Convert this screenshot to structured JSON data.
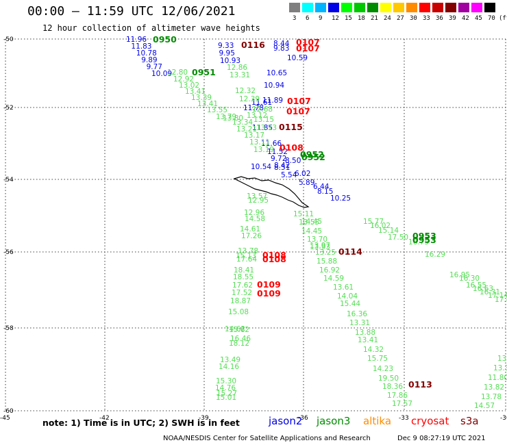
{
  "header": {
    "title": "00:00 – 11:59 UTC 12/06/2021",
    "subtitle": "12 hour collection of altimeter wave heights"
  },
  "legend": {
    "unit": "(ft)",
    "bins": [
      {
        "label": "3",
        "color": "#7f7f7f"
      },
      {
        "label": "6",
        "color": "#00ffff"
      },
      {
        "label": "9",
        "color": "#00b4ff"
      },
      {
        "label": "12",
        "color": "#0000e6"
      },
      {
        "label": "15",
        "color": "#00ff00"
      },
      {
        "label": "18",
        "color": "#00c800"
      },
      {
        "label": "21",
        "color": "#008c00"
      },
      {
        "label": "24",
        "color": "#ffff00"
      },
      {
        "label": "27",
        "color": "#ffc800"
      },
      {
        "label": "30",
        "color": "#ff8c00"
      },
      {
        "label": "33",
        "color": "#ff0000"
      },
      {
        "label": "36",
        "color": "#c80000"
      },
      {
        "label": "39",
        "color": "#820000"
      },
      {
        "label": "42",
        "color": "#a000a0"
      },
      {
        "label": "45",
        "color": "#ff00ff"
      },
      {
        "label": "70",
        "color": "#000000"
      }
    ]
  },
  "axes": {
    "lat_labels": [
      "-50",
      "-52",
      "-54",
      "-56",
      "-58",
      "-60"
    ],
    "lon_labels": [
      "-45",
      "-42",
      "-39",
      "-36",
      "-33",
      "-30"
    ]
  },
  "passes": [
    {
      "time": "0950",
      "color": "#008c00"
    },
    {
      "time": "0951",
      "color": "#008c00"
    },
    {
      "time": "0116",
      "color": "#820000"
    },
    {
      "time": "0107",
      "color": "#ff0000"
    },
    {
      "time": "0107",
      "color": "#ff0000"
    },
    {
      "time": "0107",
      "color": "#ff0000"
    },
    {
      "time": "0107",
      "color": "#ff0000"
    },
    {
      "time": "0115",
      "color": "#820000"
    },
    {
      "time": "0108",
      "color": "#ff0000"
    },
    {
      "time": "0952",
      "color": "#008c00"
    },
    {
      "time": "0953",
      "color": "#008c00"
    },
    {
      "time": "0108",
      "color": "#ff0000"
    },
    {
      "time": "0109",
      "color": "#ff0000"
    },
    {
      "time": "0114",
      "color": "#820000"
    },
    {
      "time": "0113",
      "color": "#820000"
    }
  ],
  "readings": {
    "jason2_a": [
      "11.96",
      "11.83",
      "10.78",
      "9.89",
      "9.77",
      "10.09"
    ],
    "jason2_b": [
      "9.33",
      "9.95",
      "10.93"
    ],
    "jason2_c": [
      "8.44",
      "9.83",
      "10.59",
      "10.65",
      "10.94",
      "11.89",
      "11.61",
      "11.78",
      "11.85",
      "11.66",
      "11.52",
      "9.72",
      "8.50",
      "8.42",
      "10.54",
      "8.51",
      "5.54",
      "6.02",
      "5.89",
      "6.44",
      "8.15",
      "10.25"
    ],
    "jason3_a": [
      "12.80",
      "12.92",
      "13.02",
      "13.41",
      "13.39",
      "13.41",
      "13.55",
      "13.79",
      "13.80",
      "13.34",
      "13.21",
      "13.17",
      "13.11",
      "13.19",
      "14.45",
      "15.77",
      "16.02",
      "15.14",
      "17.50",
      "16.75",
      "16.29",
      "16.95",
      "16.30",
      "16.55",
      "16.63",
      "16.31",
      "17.14",
      "17.44"
    ],
    "jason3_b": [
      "12.86",
      "13.31",
      "12.32",
      "12.39",
      "12.68",
      "13.12",
      "13.15",
      "13.13",
      "13.97"
    ],
    "jason3_c": [
      "13.57",
      "12.95",
      "12.96",
      "14.58",
      "14.61",
      "17.26",
      "13.78",
      "15.13",
      "17.64",
      "18.41",
      "18.55",
      "17.62",
      "17.52",
      "18.87",
      "15.08",
      "14.62",
      "15.62",
      "16.46",
      "18.12",
      "13.49",
      "14.16",
      "15.30",
      "14.76",
      "15.27",
      "15.01"
    ],
    "jason3_d": [
      "15.11",
      "13.55",
      "14.45",
      "13.70",
      "13.93",
      "13.25",
      "15.88",
      "16.92",
      "14.59",
      "13.61",
      "14.04",
      "15.44",
      "16.36",
      "13.31",
      "13.88",
      "13.41",
      "14.32",
      "15.75",
      "14.23",
      "19.50",
      "18.36",
      "17.86",
      "17.57"
    ],
    "jason3_e": [
      "13",
      "13.3",
      "11.80",
      "13.82",
      "13.78",
      "14.57"
    ]
  },
  "note": "note: 1) Time is in UTC; 2) SWH is in feet",
  "satellites": [
    {
      "name": "jason2",
      "color": "#0000e6"
    },
    {
      "name": "jason3",
      "color": "#008c00"
    },
    {
      "name": "altika",
      "color": "#ff8c00"
    },
    {
      "name": "cryosat",
      "color": "#ff0000"
    },
    {
      "name": "s3a",
      "color": "#820000"
    }
  ],
  "footer": {
    "credit": "NOAA/NESDIS Center for Satellite Applications and Research",
    "stamp": "Dec  9 08:27:19 UTC 2021"
  }
}
